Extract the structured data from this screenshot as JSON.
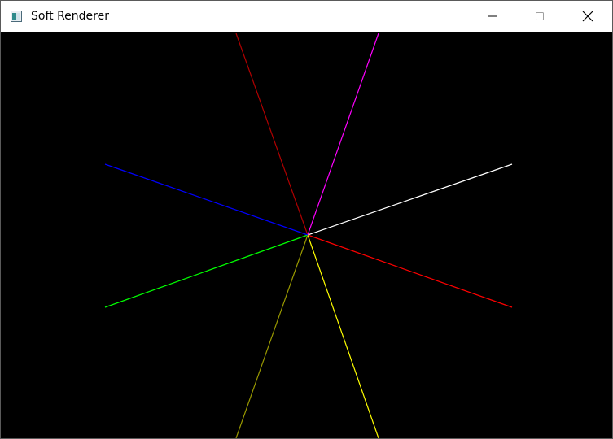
{
  "window": {
    "title": "Soft Renderer",
    "controls": [
      {
        "name": "minimize",
        "icon": "minimize-icon"
      },
      {
        "name": "maximize",
        "icon": "maximize-icon"
      },
      {
        "name": "close",
        "icon": "close-icon"
      }
    ]
  },
  "canvas": {
    "background": "#000000",
    "line_colors": [
      "#b00000",
      "#ff00ff",
      "#ffffff",
      "#ff0000",
      "#ffff00",
      "#999900",
      "#00ff00",
      "#0000ff"
    ]
  }
}
